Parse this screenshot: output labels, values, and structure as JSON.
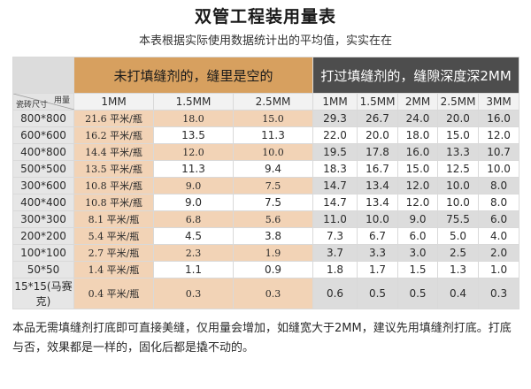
{
  "title": "双管工程装用量表",
  "subtitle": "本表根据实际使用数据统计出的平均值，实实在在",
  "table": {
    "left_header": "未打填缝剂的，缝里是空的",
    "right_header": "打过填缝剂的，缝隙深度深2MM",
    "corner_top": "用量",
    "corner_bottom": "瓷砖尺寸",
    "left_cols": [
      "1MM",
      "1.5MM",
      "2.5MM"
    ],
    "right_cols": [
      "1MM",
      "1.5MM",
      "2MM",
      "2.5MM",
      "3MM"
    ],
    "rows": [
      {
        "size": "800*800",
        "l": [
          "21.6 平米/瓶",
          "18.0",
          "15.0"
        ],
        "r": [
          "29.3",
          "26.7",
          "24.0",
          "20.0",
          "16.0"
        ]
      },
      {
        "size": "600*600",
        "l": [
          "16.2 平米/瓶",
          "13.5",
          "11.3"
        ],
        "r": [
          "22.0",
          "20.0",
          "18.0",
          "15.0",
          "12.0"
        ]
      },
      {
        "size": "400*800",
        "l": [
          "14.4 平米/瓶",
          "12.0",
          "10.0"
        ],
        "r": [
          "19.5",
          "17.8",
          "16.0",
          "13.3",
          "10.7"
        ]
      },
      {
        "size": "500*500",
        "l": [
          "13.5 平米/瓶",
          "11.3",
          "9.4"
        ],
        "r": [
          "18.3",
          "16.7",
          "15.0",
          "12.5",
          "10.0"
        ]
      },
      {
        "size": "300*600",
        "l": [
          "10.8 平米/瓶",
          "9.0",
          "7.5"
        ],
        "r": [
          "14.7",
          "13.4",
          "12.0",
          "10.0",
          "8.0"
        ]
      },
      {
        "size": "400*400",
        "l": [
          "10.8 平米/瓶",
          "9.0",
          "7.5"
        ],
        "r": [
          "14.7",
          "13.4",
          "12.0",
          "10.0",
          "8.0"
        ]
      },
      {
        "size": "300*300",
        "l": [
          "8.1 平米/瓶",
          "6.8",
          "5.6"
        ],
        "r": [
          "11.0",
          "10.0",
          "9.0",
          "75.5",
          "6.0"
        ]
      },
      {
        "size": "200*200",
        "l": [
          "5.4 平米/瓶",
          "4.5",
          "3.8"
        ],
        "r": [
          "7.3",
          "6.7",
          "6.0",
          "5.0",
          "4.0"
        ]
      },
      {
        "size": "100*100",
        "l": [
          "2.7 平米/瓶",
          "2.3",
          "1.9"
        ],
        "r": [
          "3.7",
          "3.3",
          "3.0",
          "2.5",
          "2.0"
        ]
      },
      {
        "size": "50*50",
        "l": [
          "1.4 平米/瓶",
          "1.1",
          "0.9"
        ],
        "r": [
          "1.8",
          "1.7",
          "1.5",
          "1.3",
          "1.0"
        ]
      },
      {
        "size": "15*15(马赛克)",
        "l": [
          "0.4 平米/瓶",
          "0.3",
          "0.3"
        ],
        "r": [
          "0.6",
          "0.5",
          "0.5",
          "0.4",
          "0.3"
        ]
      }
    ]
  },
  "note": "本品无需填缝剂打底即可直接美缝，仅用量会增加，如缝宽大于2MM，建议先用填缝剂打底。打底与否，效果都是一样的，固化后都是撬不动的。",
  "colors": {
    "left_header_bg": "#d7a05f",
    "right_header_bg": "#4d4d4d",
    "rate_cell_bg": "#f2d3b6",
    "right_cell_bg": "#dcdcdc"
  }
}
